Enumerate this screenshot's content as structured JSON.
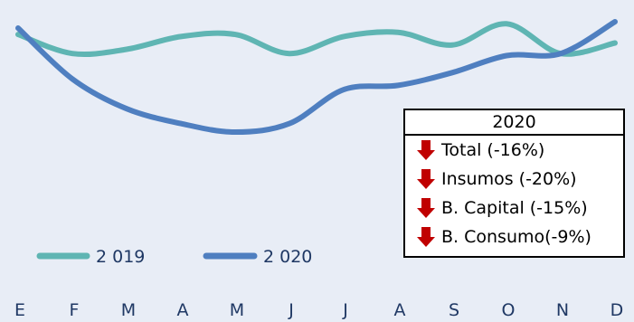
{
  "chart_data": {
    "type": "line",
    "categories": [
      "E",
      "F",
      "M",
      "A",
      "M",
      "J",
      "J",
      "A",
      "S",
      "O",
      "N",
      "D"
    ],
    "series": [
      {
        "name": "2 019",
        "color": "#5fb5b3",
        "values": [
          95,
          86,
          88,
          94,
          95,
          86,
          94,
          96,
          90,
          100,
          86,
          91
        ]
      },
      {
        "name": "2 020",
        "color": "#4f7fc0",
        "values": [
          98,
          74,
          60,
          53,
          49,
          53,
          69,
          71,
          77,
          85,
          86,
          101
        ]
      }
    ],
    "title": "",
    "xlabel": "",
    "ylabel": "",
    "grid": false,
    "legend": "bottom-left"
  },
  "summary_box": {
    "title": "2020",
    "arrow_icon": "down-arrow-icon",
    "arrow_color": "#c00000",
    "items": [
      "Total (-16%)",
      "Insumos (-20%)",
      "B. Capital (-15%)",
      "B. Consumo(-9%)"
    ]
  }
}
